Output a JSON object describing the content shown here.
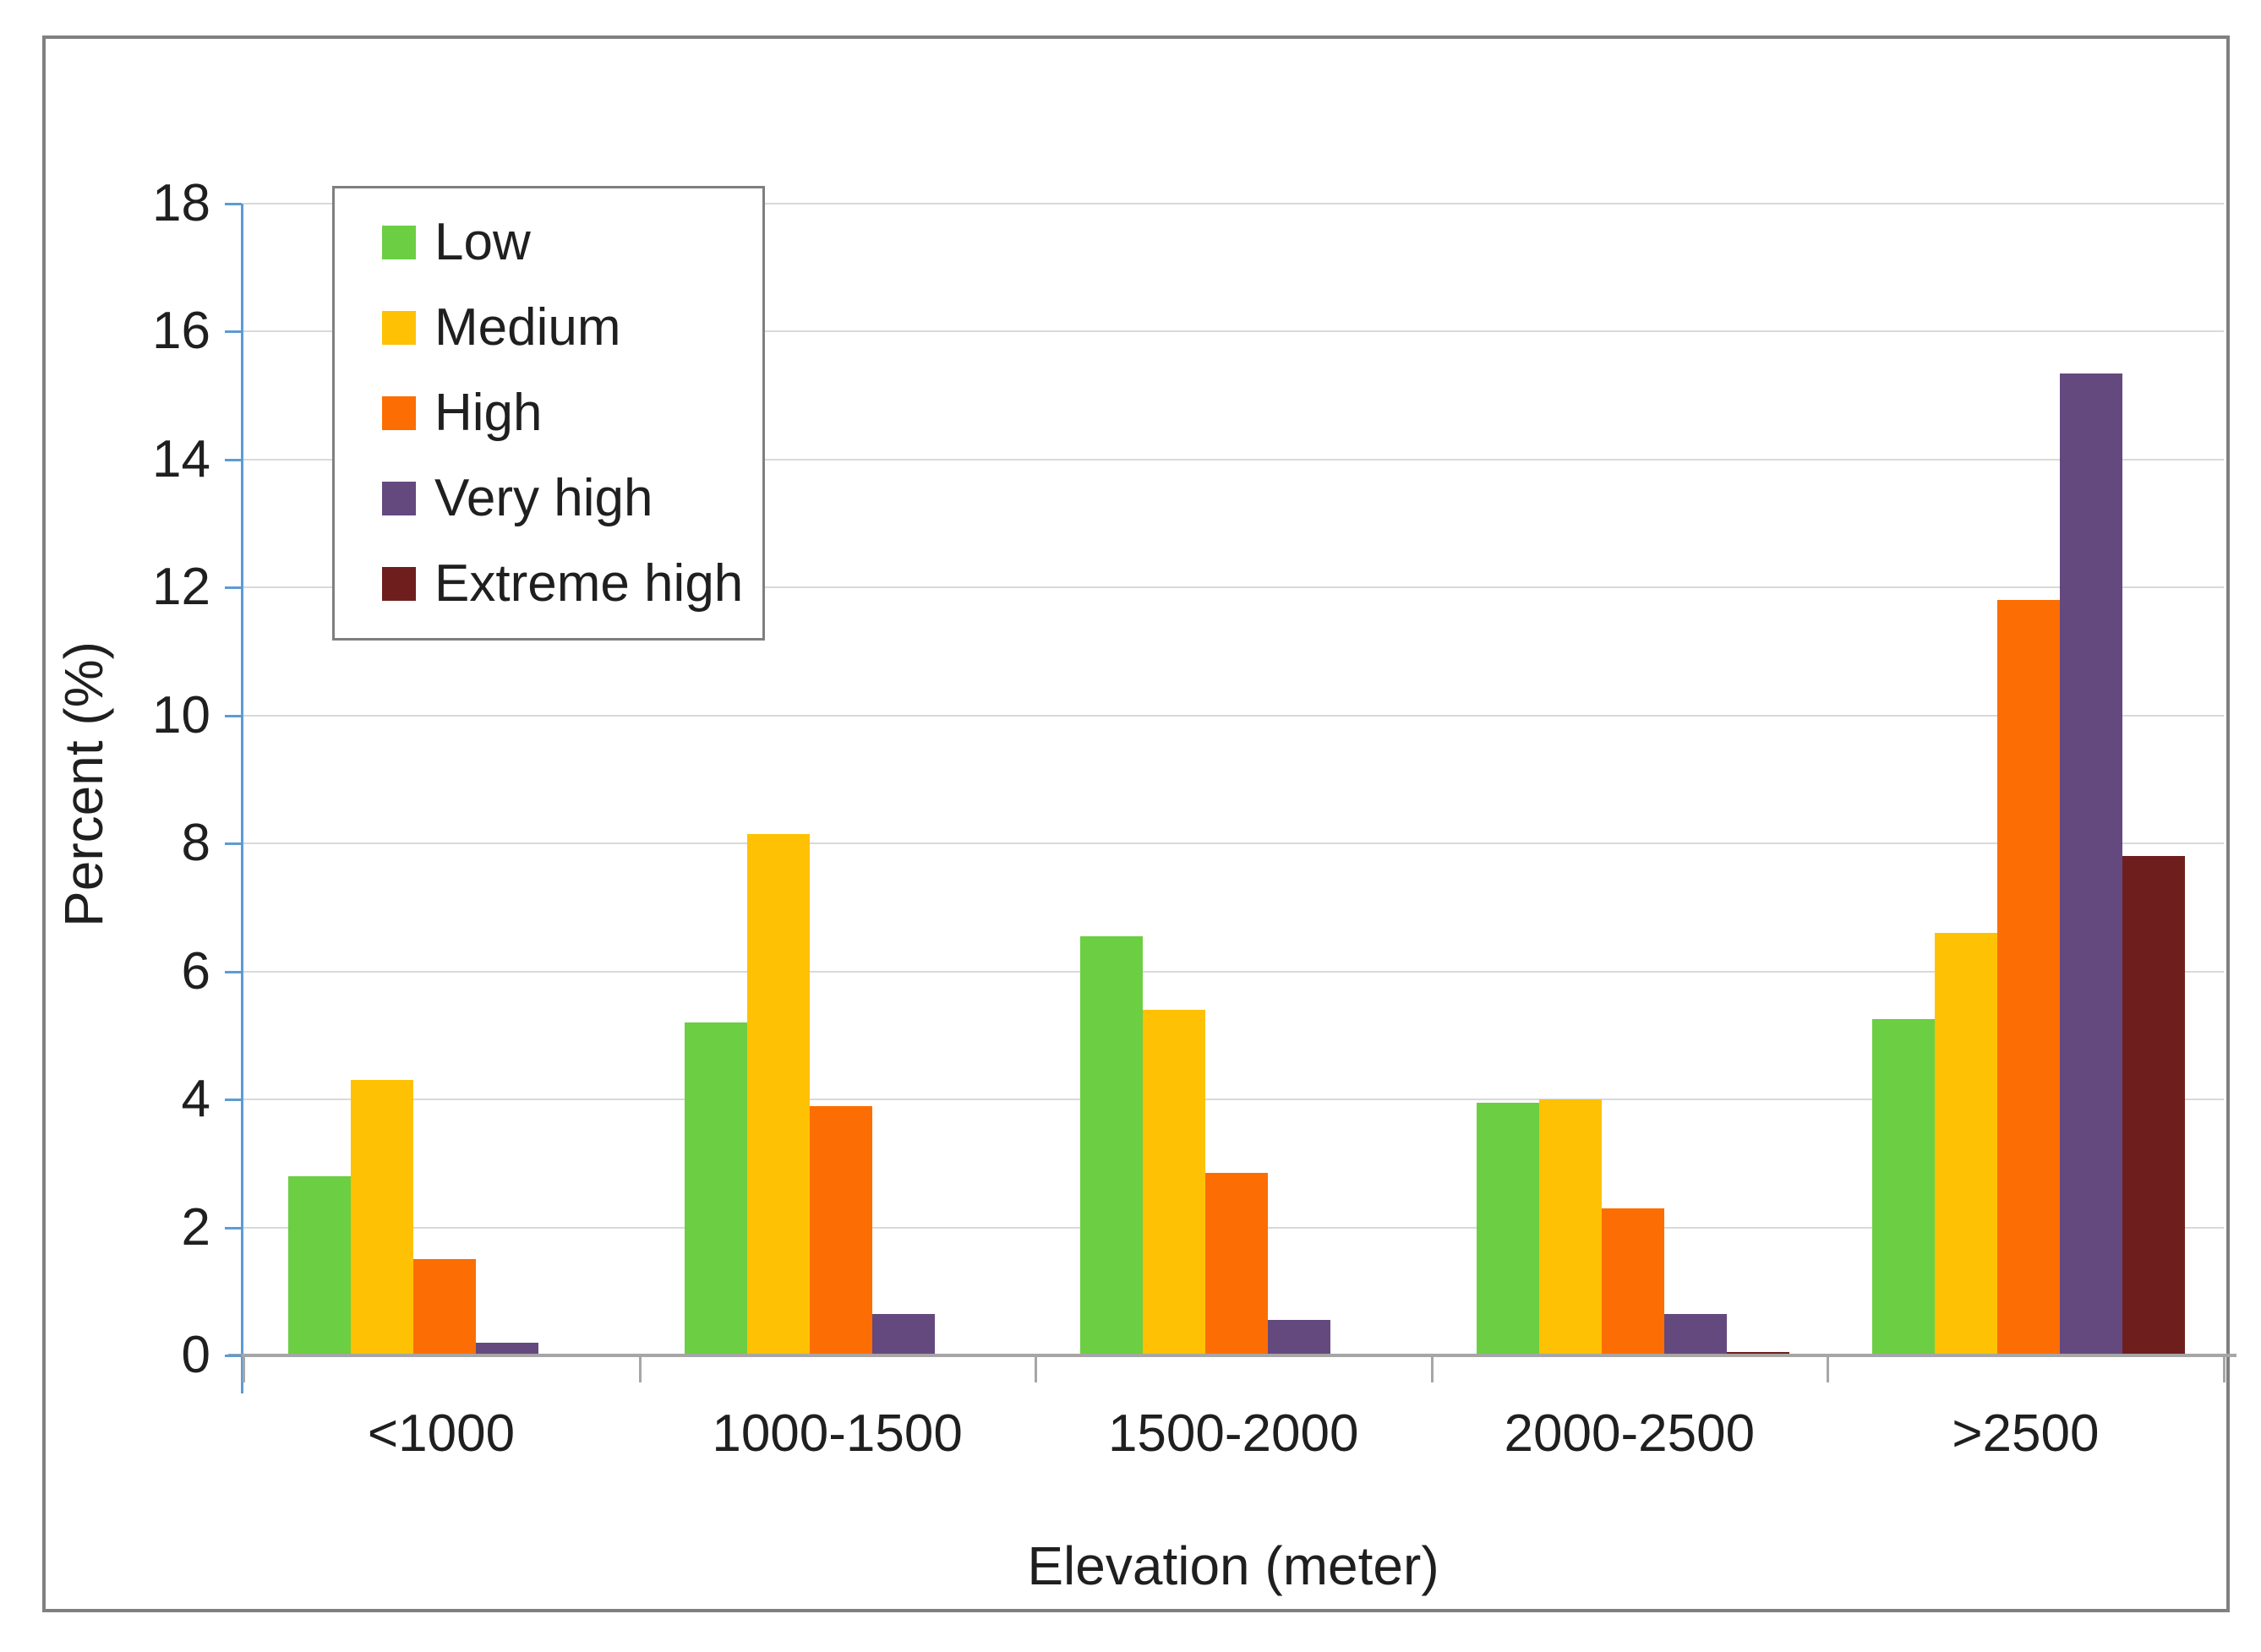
{
  "chart_data": {
    "type": "bar",
    "title": "",
    "xlabel": "Elevation (meter)",
    "ylabel": "Percent (%)",
    "categories": [
      "<1000",
      "1000-1500",
      "1500-2000",
      "2000-2500",
      ">2500"
    ],
    "series": [
      {
        "name": "Low",
        "color": "#6cce43",
        "values": [
          2.8,
          5.2,
          6.55,
          3.95,
          5.25
        ]
      },
      {
        "name": "Medium",
        "color": "#ffc103",
        "values": [
          4.3,
          8.15,
          5.4,
          4.0,
          6.6
        ]
      },
      {
        "name": "High",
        "color": "#fc6e03",
        "values": [
          1.5,
          3.9,
          2.85,
          2.3,
          11.8
        ]
      },
      {
        "name": "Very high",
        "color": "#64497e",
        "values": [
          0.2,
          0.65,
          0.55,
          0.65,
          15.35
        ]
      },
      {
        "name": "Extreme high",
        "color": "#6e1f1d",
        "values": [
          0,
          0,
          0,
          0.05,
          7.8
        ]
      }
    ],
    "ylim": [
      0,
      18
    ],
    "ytick_step": 2,
    "yticks": [
      0,
      2,
      4,
      6,
      8,
      10,
      12,
      14,
      16,
      18
    ],
    "grid": true,
    "legend_position": "top-left"
  },
  "colors": {
    "y_axis": "#5b9bd5",
    "x_axis": "#a6a6a6",
    "gridline": "#d9d9d9",
    "frame_border": "#808080",
    "legend_border": "#7f7f7f",
    "text": "#1f1f1f",
    "background": "#ffffff"
  }
}
